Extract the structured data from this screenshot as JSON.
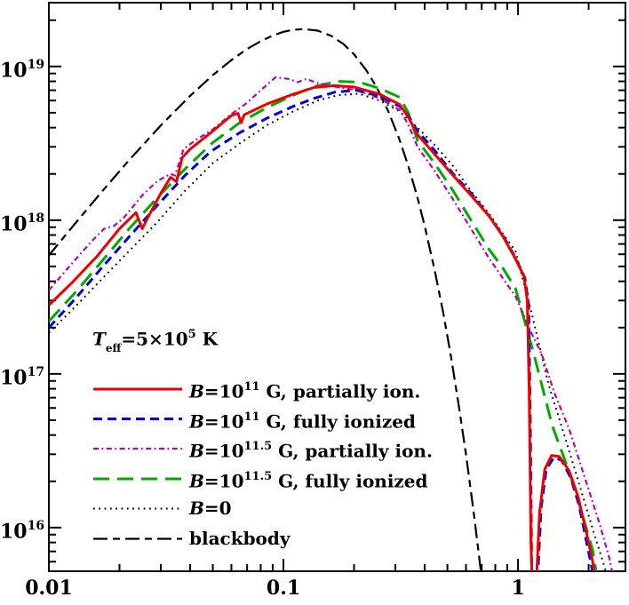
{
  "figure": {
    "background": "#ffffff",
    "axis_color": "#000000",
    "teff_label": {
      "t": "T",
      "t_sub": "eff",
      "mid": "=5×10",
      "sup": "5",
      "rest": " K"
    }
  },
  "axes": {
    "x": {
      "scale": "log",
      "min": 0.01,
      "max": 2.87,
      "majors": [
        {
          "value": 0.01,
          "label": "0.01"
        },
        {
          "value": 0.1,
          "label": "0.1"
        },
        {
          "value": 1,
          "label": "1"
        }
      ],
      "minors": [
        0.02,
        0.03,
        0.04,
        0.05,
        0.06,
        0.07,
        0.08,
        0.09,
        0.2,
        0.3,
        0.4,
        0.5,
        0.6,
        0.7,
        0.8,
        0.9,
        2
      ]
    },
    "y": {
      "scale": "log",
      "min": 5200000000000000.0,
      "max": 2.6e+19,
      "majors": [
        {
          "value": 1e+16,
          "base": "10",
          "sup": "16"
        },
        {
          "value": 1e+17,
          "base": "10",
          "sup": "17"
        },
        {
          "value": 1e+18,
          "base": "10",
          "sup": "18"
        },
        {
          "value": 1e+19,
          "base": "10",
          "sup": "19"
        }
      ],
      "minors": [
        6000000000000000.0,
        7000000000000000.0,
        8000000000000000.0,
        9000000000000000.0,
        2e+16,
        3e+16,
        4e+16,
        5e+16,
        6e+16,
        7e+16,
        8e+16,
        9e+16,
        2e+17,
        3e+17,
        4e+17,
        5e+17,
        6e+17,
        7e+17,
        8e+17,
        9e+17,
        2e+18,
        3e+18,
        4e+18,
        5e+18,
        6e+18,
        7e+18,
        8e+18,
        9e+18,
        2e+19
      ]
    }
  },
  "legend": {
    "entries": [
      {
        "series": "red-partial",
        "b": "B",
        "mid": "=10",
        "sup": "11",
        "rest": " G, partially ion."
      },
      {
        "series": "blue-full",
        "b": "B",
        "mid": "=10",
        "sup": "11",
        "rest": " G, fully ionized"
      },
      {
        "series": "magenta-partial",
        "b": "B",
        "mid": "=10",
        "sup": "11.5",
        "rest": " G, partially ion."
      },
      {
        "series": "green-full",
        "b": "B",
        "mid": "=10",
        "sup": "11.5",
        "rest": " G, fully ionized"
      },
      {
        "series": "b0",
        "b": "B",
        "mid": "=0",
        "sup": "",
        "rest": ""
      },
      {
        "series": "blackbody",
        "b": "",
        "mid": "",
        "sup": "",
        "rest": "blackbody"
      }
    ]
  },
  "chart_data": {
    "type": "line",
    "title": "",
    "xlabel": "",
    "ylabel": "",
    "log_x": true,
    "log_y": true,
    "x_range": [
      0.01,
      2.87
    ],
    "y_range": [
      5200000000000000.0,
      2.6e+19
    ],
    "grid": false,
    "legend_position": "lower-left-inside",
    "annotation": "T_eff = 5e5 K",
    "series": [
      {
        "id": "blackbody",
        "name": "blackbody",
        "color": "#000000",
        "width": 2.2,
        "dash": "16,6,8,6",
        "points": [
          [
            0.01,
            5.9e+17
          ],
          [
            0.013,
            9.6e+17
          ],
          [
            0.017,
            1.56e+18
          ],
          [
            0.022,
            2.46e+18
          ],
          [
            0.03,
            4.13e+18
          ],
          [
            0.04,
            6.44e+18
          ],
          [
            0.05,
            8.79e+18
          ],
          [
            0.06,
            1.1e+19
          ],
          [
            0.07,
            1.3e+19
          ],
          [
            0.08,
            1.46e+19
          ],
          [
            0.09,
            1.59e+19
          ],
          [
            0.1,
            1.68e+19
          ],
          [
            0.11,
            1.73e+19
          ],
          [
            0.122,
            1.75e+19
          ],
          [
            0.14,
            1.71e+19
          ],
          [
            0.16,
            1.58e+19
          ],
          [
            0.18,
            1.4e+19
          ],
          [
            0.2,
            1.2e+19
          ],
          [
            0.225,
            9.5e+18
          ],
          [
            0.25,
            7.3e+18
          ],
          [
            0.28,
            5.1e+18
          ],
          [
            0.31,
            3.45e+18
          ],
          [
            0.34,
            2.27e+18
          ],
          [
            0.37,
            1.46e+18
          ],
          [
            0.4,
            9.2e+17
          ],
          [
            0.44,
            4.8e+17
          ],
          [
            0.48,
            2.5e+17
          ],
          [
            0.52,
            1.25e+17
          ],
          [
            0.56,
            6.1e+16
          ],
          [
            0.6,
            3e+16
          ],
          [
            0.65,
            1.19e+16
          ],
          [
            0.7,
            4700000000000000.0
          ]
        ]
      },
      {
        "id": "b0",
        "name": "B=0",
        "color": "#000000",
        "width": 2,
        "dash": "1.8,4.5",
        "points": [
          [
            0.01,
            1.85e+17
          ],
          [
            0.013,
            2.75e+17
          ],
          [
            0.017,
            4.2e+17
          ],
          [
            0.022,
            6.3e+17
          ],
          [
            0.029,
            9.7e+17
          ],
          [
            0.038,
            1.55e+18
          ],
          [
            0.05,
            2.35e+18
          ],
          [
            0.065,
            3.15e+18
          ],
          [
            0.085,
            4.15e+18
          ],
          [
            0.11,
            5.1e+18
          ],
          [
            0.14,
            6e+18
          ],
          [
            0.17,
            6.5e+18
          ],
          [
            0.21,
            6.65e+18
          ],
          [
            0.257,
            6e+18
          ],
          [
            0.313,
            5.1e+18
          ],
          [
            0.373,
            4e+18
          ],
          [
            0.44,
            3.1e+18
          ],
          [
            0.529,
            2.25e+18
          ],
          [
            0.63,
            1.55e+18
          ],
          [
            0.75,
            1.11e+18
          ],
          [
            0.86,
            8.2e+17
          ],
          [
            0.975,
            6.3e+17
          ],
          [
            1.15,
            2.4e+17
          ],
          [
            1.35,
            8.5e+16
          ],
          [
            1.53,
            4.6e+16
          ],
          [
            1.79,
            2.1e+16
          ],
          [
            2.09,
            9600000000000000.0
          ],
          [
            2.37,
            5200000000000000.0
          ],
          [
            2.5,
            3800000000000000.0
          ]
        ]
      },
      {
        "id": "green-full",
        "name": "B=10^11.5 G, fully ionized",
        "color": "#00aa00",
        "width": 3,
        "dash": "18,9",
        "points": [
          [
            0.01,
            2.2e+17
          ],
          [
            0.013,
            3.4e+17
          ],
          [
            0.017,
            5.5e+17
          ],
          [
            0.022,
            8.8e+17
          ],
          [
            0.029,
            1.4e+18
          ],
          [
            0.038,
            2.15e+18
          ],
          [
            0.05,
            3.2e+18
          ],
          [
            0.065,
            4.3e+18
          ],
          [
            0.085,
            5.4e+18
          ],
          [
            0.11,
            6.5e+18
          ],
          [
            0.135,
            7.4e+18
          ],
          [
            0.17,
            8e+18
          ],
          [
            0.21,
            7.9e+18
          ],
          [
            0.257,
            7.2e+18
          ],
          [
            0.313,
            6.3e+18
          ],
          [
            0.34,
            5e+18
          ],
          [
            0.373,
            3.3e+18
          ],
          [
            0.44,
            2.35e+18
          ],
          [
            0.529,
            1.55e+18
          ],
          [
            0.63,
            1e+18
          ],
          [
            0.75,
            6.5e+17
          ],
          [
            0.86,
            4.9e+17
          ],
          [
            0.975,
            3.6e+17
          ],
          [
            1.16,
            1.4e+17
          ],
          [
            1.4,
            4.6e+16
          ],
          [
            1.67,
            2.2e+16
          ],
          [
            1.87,
            1.25e+16
          ],
          [
            2.08,
            7100000000000000.0
          ],
          [
            2.2,
            4200000000000000.0
          ]
        ]
      },
      {
        "id": "magenta-partial",
        "name": "B=10^11.5 G, partially ion.",
        "color": "#bb00b4",
        "width": 2.2,
        "dash": "6,3.5,1.8,3.5",
        "points": [
          [
            0.01,
            3.5e+17
          ],
          [
            0.0125,
            5.2e+17
          ],
          [
            0.0151,
            7.2e+17
          ],
          [
            0.0172,
            8.8e+17
          ],
          [
            0.019,
            9.2e+17
          ],
          [
            0.021,
            1.05e+18
          ],
          [
            0.025,
            1.45e+18
          ],
          [
            0.029,
            1.8e+18
          ],
          [
            0.033,
            2e+18
          ],
          [
            0.0345,
            1.95e+18
          ],
          [
            0.0375,
            2.9e+18
          ],
          [
            0.042,
            3.3e+18
          ],
          [
            0.05,
            3.9e+18
          ],
          [
            0.06,
            4.9e+18
          ],
          [
            0.07,
            5.8e+18
          ],
          [
            0.08,
            7e+18
          ],
          [
            0.0925,
            8.5e+18
          ],
          [
            0.105,
            8.3e+18
          ],
          [
            0.115,
            7.9e+18
          ],
          [
            0.125,
            8.3e+18
          ],
          [
            0.14,
            7.8e+18
          ],
          [
            0.165,
            7.4e+18
          ],
          [
            0.205,
            7e+18
          ],
          [
            0.257,
            6.2e+18
          ],
          [
            0.313,
            5.2e+18
          ],
          [
            0.34,
            4.2e+18
          ],
          [
            0.373,
            3e+18
          ],
          [
            0.44,
            2.1e+18
          ],
          [
            0.529,
            1.36e+18
          ],
          [
            0.63,
            8.8e+17
          ],
          [
            0.75,
            5.7e+17
          ],
          [
            0.86,
            4.2e+17
          ],
          [
            0.975,
            3.2e+17
          ],
          [
            1.13,
            1.9e+17
          ],
          [
            1.26,
            1.35e+17
          ],
          [
            1.43,
            7.5e+16
          ],
          [
            1.65,
            4.4e+16
          ],
          [
            1.91,
            2.2e+16
          ],
          [
            2.23,
            1.05e+16
          ],
          [
            2.46,
            6200000000000000.0
          ],
          [
            2.6,
            4000000000000000.0
          ]
        ]
      },
      {
        "id": "blue-full",
        "name": "B=10^11 G, fully ionized",
        "color": "#0000e0",
        "width": 3,
        "dash": "10,6",
        "points": [
          [
            0.01,
            2e+17
          ],
          [
            0.013,
            3.1e+17
          ],
          [
            0.017,
            5e+17
          ],
          [
            0.022,
            7.8e+17
          ],
          [
            0.029,
            1.25e+18
          ],
          [
            0.038,
            1.95e+18
          ],
          [
            0.049,
            2.8e+18
          ],
          [
            0.065,
            3.7e+18
          ],
          [
            0.085,
            4.6e+18
          ],
          [
            0.11,
            5.5e+18
          ],
          [
            0.135,
            6.2e+18
          ],
          [
            0.165,
            6.8e+18
          ],
          [
            0.205,
            7e+18
          ],
          [
            0.257,
            6.4e+18
          ],
          [
            0.313,
            5.5e+18
          ],
          [
            0.34,
            4.8e+18
          ],
          [
            0.373,
            3.8e+18
          ],
          [
            0.44,
            2.85e+18
          ],
          [
            0.529,
            2e+18
          ],
          [
            0.63,
            1.5e+18
          ],
          [
            0.75,
            1.07e+18
          ],
          [
            0.86,
            8e+17
          ],
          [
            0.975,
            5.7e+17
          ],
          [
            1.07,
            4.2e+17
          ],
          [
            1.11,
            2.8e+17
          ],
          [
            1.128,
            5e+16
          ],
          [
            1.145,
            4500000000000000.0
          ],
          [
            1.215,
            5000000000000000.0
          ],
          [
            1.255,
            1.35e+16
          ],
          [
            1.32,
            2.4e+16
          ],
          [
            1.42,
            2.85e+16
          ],
          [
            1.53,
            2.75e+16
          ],
          [
            1.68,
            2.1e+16
          ],
          [
            1.82,
            1.4e+16
          ],
          [
            1.96,
            8000000000000000.0
          ],
          [
            2.08,
            5200000000000000.0
          ],
          [
            2.15,
            4200000000000000.0
          ]
        ]
      },
      {
        "id": "red-partial",
        "name": "B=10^11 G, partially ion.",
        "color": "#ee0000",
        "width": 3,
        "dash": "",
        "points": [
          [
            0.01,
            2.8e+17
          ],
          [
            0.0125,
            3.9e+17
          ],
          [
            0.016,
            5.8e+17
          ],
          [
            0.02,
            8.8e+17
          ],
          [
            0.0235,
            1.12e+18
          ],
          [
            0.025,
            8.8e+17
          ],
          [
            0.0265,
            1.05e+18
          ],
          [
            0.03,
            1.5e+18
          ],
          [
            0.033,
            1.9e+18
          ],
          [
            0.035,
            1.78e+18
          ],
          [
            0.037,
            2.55e+18
          ],
          [
            0.04,
            2.9e+18
          ],
          [
            0.05,
            3.8e+18
          ],
          [
            0.06,
            4.8e+18
          ],
          [
            0.064,
            4.95e+18
          ],
          [
            0.066,
            4.3e+18
          ],
          [
            0.068,
            4.85e+18
          ],
          [
            0.085,
            5.7e+18
          ],
          [
            0.11,
            6.6e+18
          ],
          [
            0.135,
            7.3e+18
          ],
          [
            0.165,
            7.5e+18
          ],
          [
            0.2,
            7.35e+18
          ],
          [
            0.257,
            6.6e+18
          ],
          [
            0.313,
            5.65e+18
          ],
          [
            0.34,
            4.7e+18
          ],
          [
            0.373,
            3.6e+18
          ],
          [
            0.44,
            2.7e+18
          ],
          [
            0.529,
            1.95e+18
          ],
          [
            0.63,
            1.45e+18
          ],
          [
            0.75,
            1.07e+18
          ],
          [
            0.86,
            7.9e+17
          ],
          [
            0.975,
            5.6e+17
          ],
          [
            1.06,
            4.3e+17
          ],
          [
            1.095,
            3e+17
          ],
          [
            1.115,
            8e+16
          ],
          [
            1.135,
            8000000000000000.0
          ],
          [
            1.15,
            4200000000000000.0
          ],
          [
            1.2,
            4800000000000000.0
          ],
          [
            1.235,
            1.25e+16
          ],
          [
            1.3,
            2.4e+16
          ],
          [
            1.39,
            2.95e+16
          ],
          [
            1.5,
            2.9e+16
          ],
          [
            1.65,
            2.35e+16
          ],
          [
            1.8,
            1.6e+16
          ],
          [
            1.95,
            9500000000000000.0
          ],
          [
            2.08,
            6000000000000000.0
          ],
          [
            2.15,
            4400000000000000.0
          ]
        ]
      }
    ]
  }
}
